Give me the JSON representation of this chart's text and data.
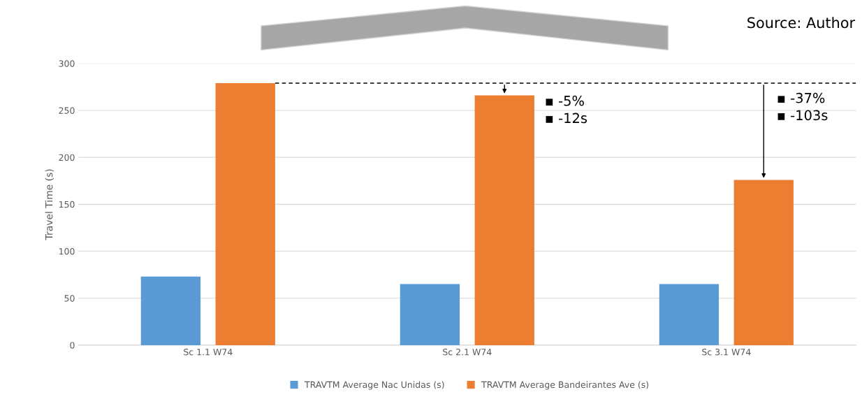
{
  "chart_data": {
    "type": "bar",
    "ylabel": "Travel Time (s)",
    "categories": [
      "Sc 1.1 W74",
      "Sc 2.1 W74",
      "Sc 3.1 W74"
    ],
    "series": [
      {
        "name": "TRAVTM Average Nac Unidas (s)",
        "color": "#5b9bd5",
        "values": [
          73,
          65,
          65
        ]
      },
      {
        "name": "TRAVTM Average Bandeirantes Ave (s)",
        "color": "#ed7d31",
        "values": [
          279,
          266,
          176
        ]
      }
    ],
    "ylim": [
      0,
      300
    ],
    "yticks": [
      0,
      50,
      100,
      150,
      200,
      250,
      300
    ],
    "grid": "y",
    "legend": "bottom",
    "ref_lines": [
      {
        "axis": "y",
        "value": 279,
        "color": "#000000",
        "line_style": "dashed"
      }
    ],
    "annotations": [
      "Source: Author",
      "▪ -5%\n▪ -12s",
      "▪ -37%\n▪ -103s"
    ]
  }
}
